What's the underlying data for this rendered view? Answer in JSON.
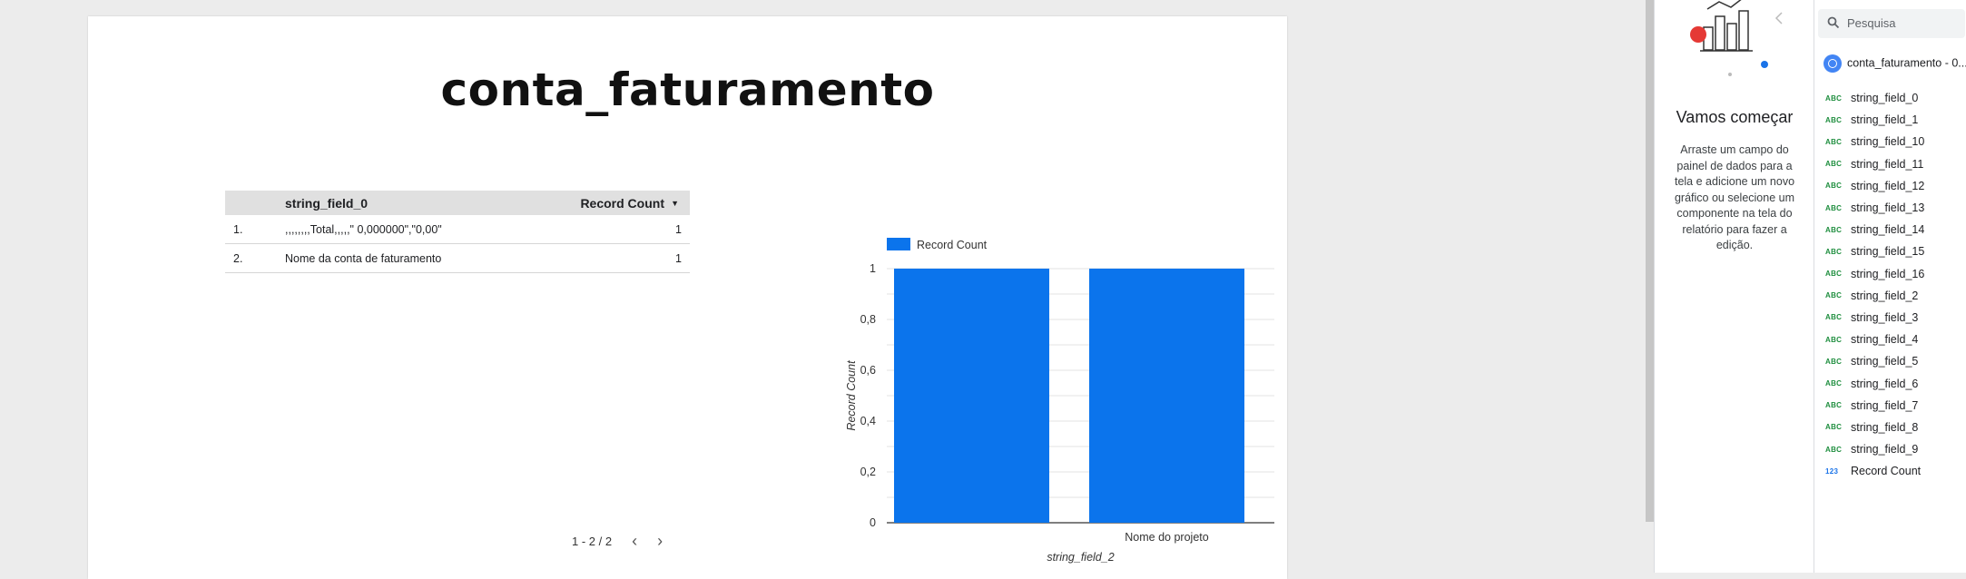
{
  "report": {
    "title": "conta_faturamento"
  },
  "table": {
    "headers": {
      "dimension": "string_field_0",
      "metric": "Record Count"
    },
    "rows": [
      {
        "index": "1.",
        "value": ",,,,,,,,Total,,,,,\" 0,000000\",\"0,00\"",
        "count": "1"
      },
      {
        "index": "2.",
        "value": "Nome da conta de faturamento",
        "count": "1"
      }
    ],
    "pagination": "1 - 2 / 2"
  },
  "chart_data": {
    "type": "bar",
    "categories": [
      "",
      "Nome do projeto"
    ],
    "series": [
      {
        "name": "Record Count",
        "values": [
          1,
          1
        ],
        "color": "#0b74ec"
      }
    ],
    "xlabel": "string_field_2",
    "ylabel": "Record Count",
    "ylim": [
      0,
      1
    ],
    "yticks": [
      "0",
      "0,2",
      "0,4",
      "0,6",
      "0,8",
      "1"
    ],
    "grid": true,
    "legend_position": "top-left"
  },
  "properties_panel": {
    "title": "Vamos começar",
    "body": "Arraste um campo do painel de dados para a tela e adicione um novo gráfico ou selecione um componente na tela do relatório para fazer a edição."
  },
  "data_panel": {
    "search_placeholder": "Pesquisa",
    "source_name": "conta_faturamento - 0...",
    "fields": [
      {
        "type": "ABC",
        "name": "string_field_0"
      },
      {
        "type": "ABC",
        "name": "string_field_1"
      },
      {
        "type": "ABC",
        "name": "string_field_10"
      },
      {
        "type": "ABC",
        "name": "string_field_11"
      },
      {
        "type": "ABC",
        "name": "string_field_12"
      },
      {
        "type": "ABC",
        "name": "string_field_13"
      },
      {
        "type": "ABC",
        "name": "string_field_14"
      },
      {
        "type": "ABC",
        "name": "string_field_15"
      },
      {
        "type": "ABC",
        "name": "string_field_16"
      },
      {
        "type": "ABC",
        "name": "string_field_2"
      },
      {
        "type": "ABC",
        "name": "string_field_3"
      },
      {
        "type": "ABC",
        "name": "string_field_4"
      },
      {
        "type": "ABC",
        "name": "string_field_5"
      },
      {
        "type": "ABC",
        "name": "string_field_6"
      },
      {
        "type": "ABC",
        "name": "string_field_7"
      },
      {
        "type": "ABC",
        "name": "string_field_8"
      },
      {
        "type": "ABC",
        "name": "string_field_9"
      },
      {
        "type": "123",
        "name": "Record Count"
      }
    ]
  }
}
